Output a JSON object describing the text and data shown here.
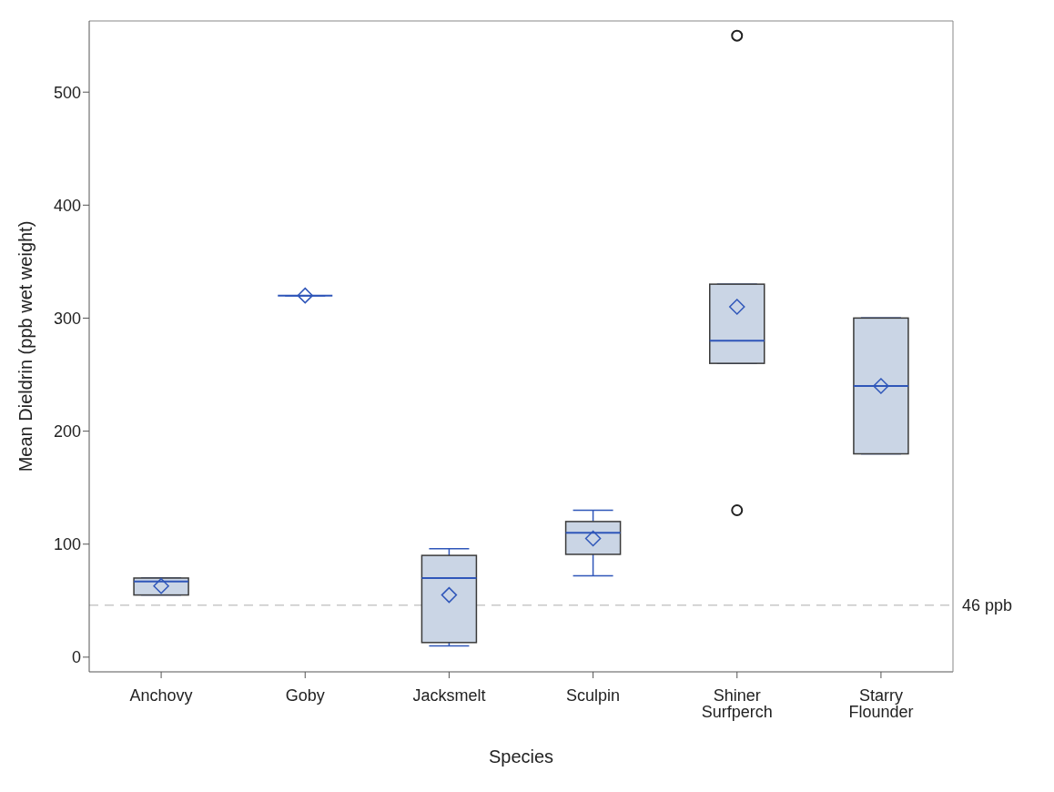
{
  "chart_data": {
    "type": "box",
    "xlabel": "Species",
    "ylabel": "Mean Dieldrin (ppb wet weight)",
    "categories": [
      "Anchovy",
      "Goby",
      "Jacksmelt",
      "Sculpin",
      "Shiner Surfperch",
      "Starry Flounder"
    ],
    "colors": [
      "#cad5e5",
      "#2f56b9",
      "#cad5e5",
      "#cad5e5",
      "#cad5e5",
      "#cad5e5"
    ],
    "boxes": [
      {
        "low": 55,
        "q1": 55,
        "median": 67,
        "q3": 70,
        "high": 70,
        "mean": 63
      },
      {
        "low": 320,
        "q1": 320,
        "median": 320,
        "q3": 320,
        "high": 320,
        "mean": 320
      },
      {
        "low": 10,
        "q1": 13,
        "median": 70,
        "q3": 90,
        "high": 96,
        "mean": 55
      },
      {
        "low": 72,
        "q1": 91,
        "median": 110,
        "q3": 120,
        "high": 130,
        "mean": 105
      },
      {
        "low": 260,
        "q1": 260,
        "median": 280,
        "q3": 330,
        "high": 330,
        "mean": 310,
        "outliers": [
          130,
          550
        ]
      },
      {
        "low": 180,
        "q1": 180,
        "median": 240,
        "q3": 300,
        "high": 300,
        "mean": 240
      }
    ],
    "ylim": [
      -13,
      563
    ],
    "yticks": [
      0,
      100,
      200,
      300,
      400,
      500
    ],
    "ref_lines": [
      {
        "axis": "y",
        "value": 46,
        "label": "46 ppb",
        "color": "#c8c8c8",
        "line_style": "dashed"
      }
    ]
  }
}
